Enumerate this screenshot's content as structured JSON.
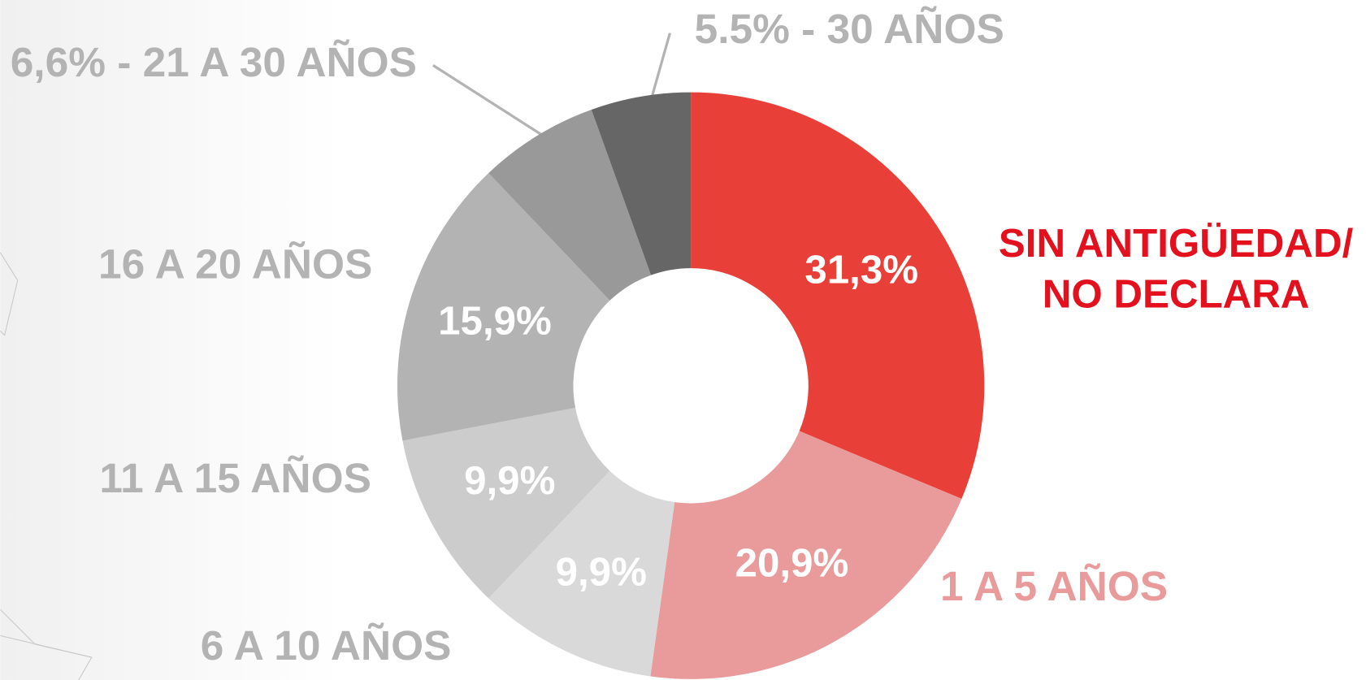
{
  "chart_data": {
    "type": "pie",
    "categories": [
      "SIN ANTIGÜEDAD/ NO DECLARA",
      "1 A 5 AÑOS",
      "6 A 10 AÑOS",
      "11 A 15 AÑOS",
      "16 A 20 AÑOS",
      "6,6% - 21 A 30 AÑOS",
      "5.5% - 30 AÑOS"
    ],
    "values": [
      31.3,
      20.9,
      9.9,
      9.9,
      15.9,
      6.6,
      5.5
    ],
    "value_labels": [
      "31,3%",
      "20,9%",
      "9,9%",
      "9,9%",
      "15,9%",
      null,
      null
    ],
    "colors": [
      "#e84038",
      "#e99a9a",
      "#d9d9d9",
      "#cccccc",
      "#b3b3b3",
      "#999999",
      "#666666"
    ],
    "label_colors": [
      "#e3101e",
      "#e99a9a",
      "#b3b3b3",
      "#b3b3b3",
      "#b3b3b3",
      "#b3b3b3",
      "#b3b3b3"
    ]
  }
}
